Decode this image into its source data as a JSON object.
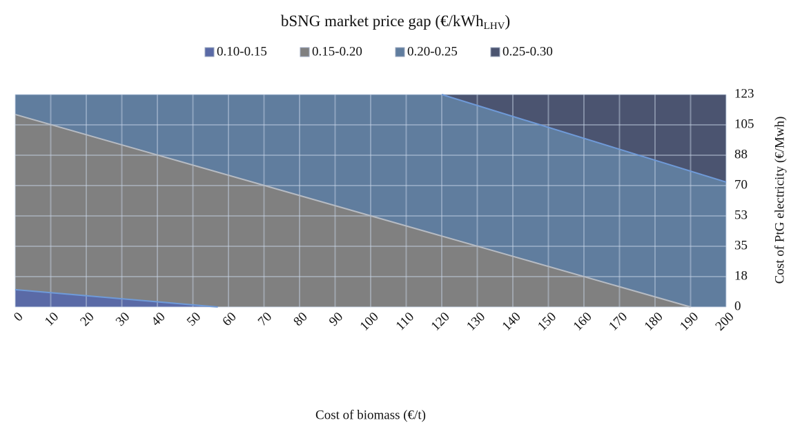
{
  "chart_data": {
    "type": "contour",
    "title": {
      "text": "bSNG market price gap (€/kWh",
      "subscript": "LHV",
      "suffix": ")"
    },
    "x_label": "Cost of biomass (€/t)",
    "y_label": "Cost of PtG electricity (€/Mwh)",
    "xlim": [
      0,
      200
    ],
    "xticks": [
      0,
      10,
      20,
      30,
      40,
      50,
      60,
      70,
      80,
      90,
      100,
      110,
      120,
      130,
      140,
      150,
      160,
      170,
      180,
      190,
      200
    ],
    "ylim": [
      0,
      122.5
    ],
    "yticks": [
      0,
      {
        "value": 17.5,
        "label": "18"
      },
      35,
      {
        "value": 52.5,
        "label": "53"
      },
      70,
      {
        "value": 87.5,
        "label": "88"
      },
      105,
      {
        "value": 122.5,
        "label": "123"
      }
    ],
    "y_axis_side": "right",
    "grid": true,
    "legend": "top",
    "series": [
      {
        "name": "0.10-0.15",
        "color": "#5a6aa6"
      },
      {
        "name": "0.15-0.20",
        "color": "#808080"
      },
      {
        "name": "0.20-0.25",
        "color": "#607d9e"
      },
      {
        "name": "0.25-0.30",
        "color": "#4b5470"
      }
    ],
    "boundaries": [
      {
        "x": [
          0,
          57
        ],
        "y": [
          10,
          0
        ]
      },
      {
        "x": [
          0,
          190
        ],
        "y": [
          111,
          0
        ]
      },
      {
        "x": [
          120,
          200
        ],
        "y": [
          122.5,
          72
        ]
      }
    ]
  }
}
